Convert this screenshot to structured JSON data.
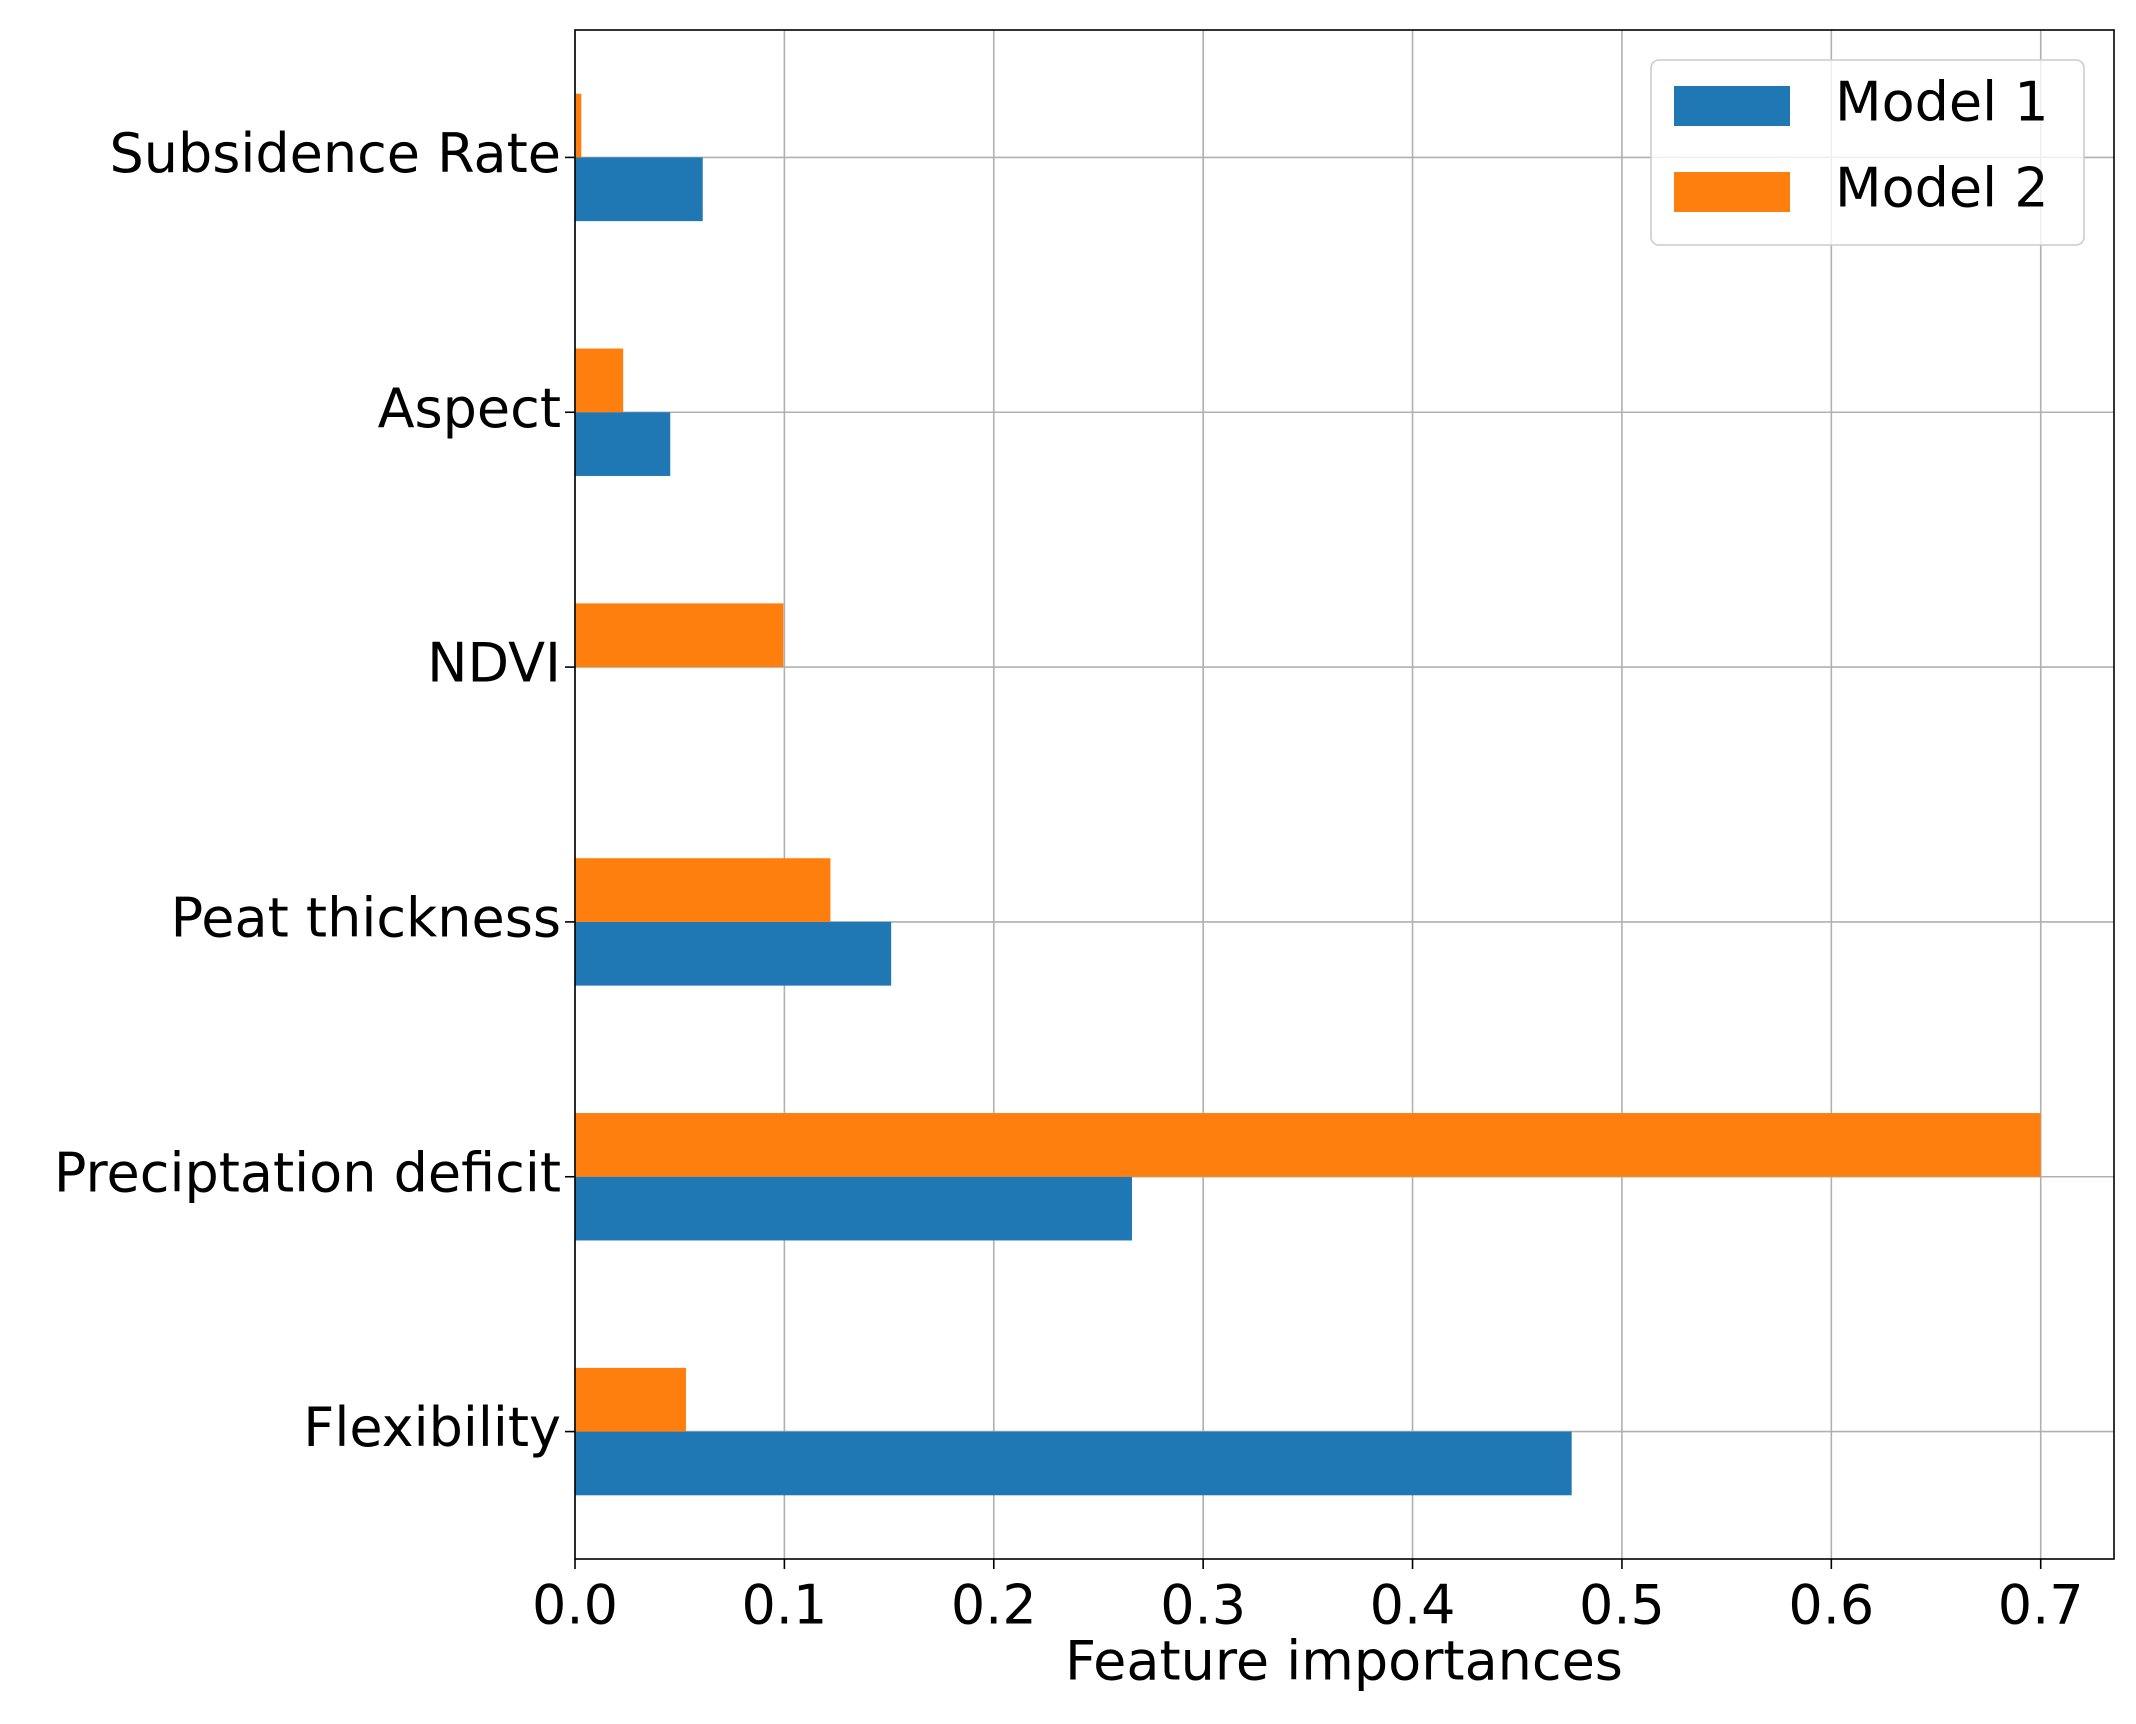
{
  "chart_data": {
    "type": "barh",
    "categories": [
      "Flexibility",
      "Preciptation deficit",
      "Peat thickness",
      "NDVI",
      "Aspect",
      "Subsidence Rate"
    ],
    "series": [
      {
        "name": "Model 1",
        "color": "#1f77b4",
        "values": [
          0.476,
          0.266,
          0.151,
          0,
          0.0455,
          0.061
        ]
      },
      {
        "name": "Model 2",
        "color": "#ff7f0e",
        "values": [
          0.053,
          0.7,
          0.122,
          0.0995,
          0.023,
          0.003
        ]
      }
    ],
    "xlabel": "Feature importances",
    "xlim": [
      0,
      0.735
    ],
    "xticks": [
      {
        "value": 0,
        "label": "0.0"
      },
      0.1,
      0.2,
      0.3,
      0.4,
      0.5,
      0.6,
      0.7
    ],
    "grid": true,
    "legend": "upper right"
  }
}
